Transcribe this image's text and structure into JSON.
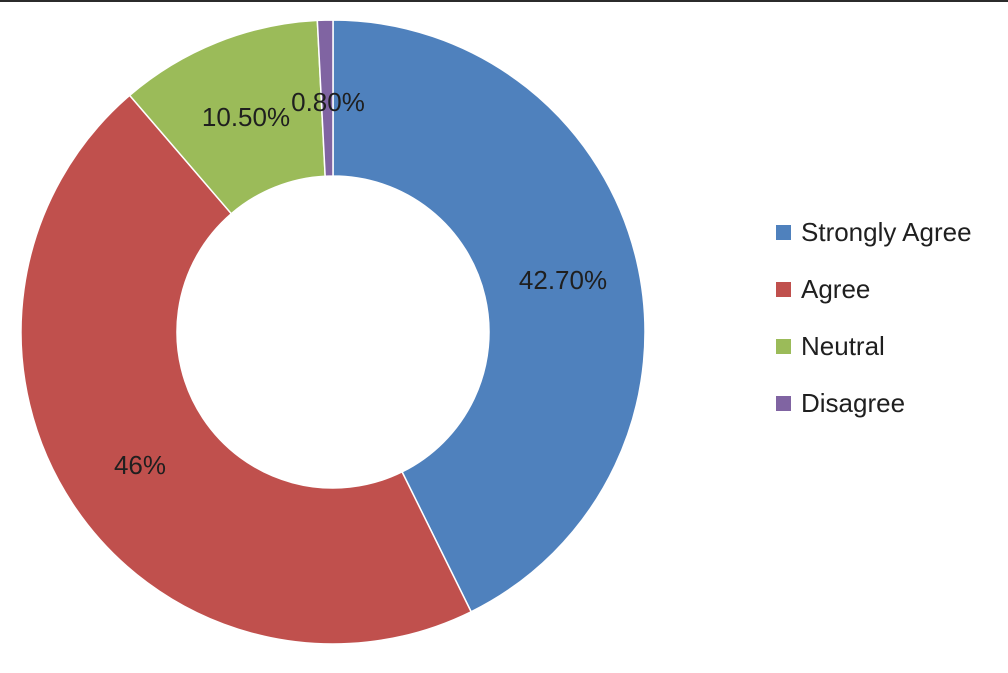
{
  "chart_data": {
    "type": "pie",
    "subtype": "donut",
    "title": "",
    "categories": [
      "Strongly Agree",
      "Agree",
      "Neutral",
      "Disagree"
    ],
    "values": [
      42.7,
      46,
      10.5,
      0.8
    ],
    "data_labels": [
      "42.70%",
      "46%",
      "10.50%",
      "0.80%"
    ],
    "colors": [
      "#4F81BD",
      "#C0504D",
      "#9BBB59",
      "#8064A2"
    ],
    "legend_position": "right"
  }
}
